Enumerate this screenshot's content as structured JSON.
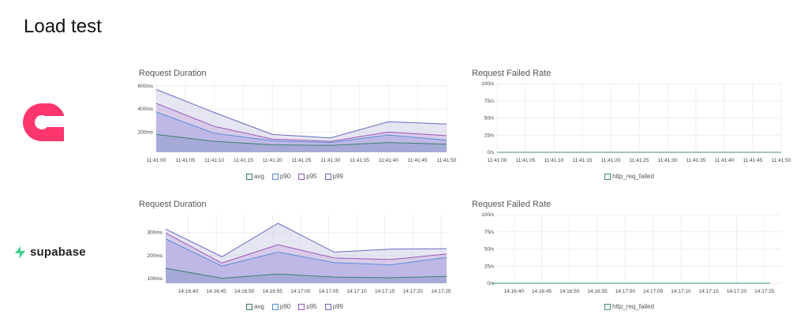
{
  "page": {
    "title": "Load test"
  },
  "logos": [
    {
      "name": "Appwrite"
    },
    {
      "name": "supabase"
    }
  ],
  "colors": {
    "avg": "#3d7f6e",
    "p90": "#5b8ed6",
    "p95": "#9b59b6",
    "p99": "#6a6abf",
    "failed": "#3d8f6e",
    "brand1": "#fd366e",
    "brand2": "#3ecf8e"
  },
  "chart_data": [
    {
      "type": "area",
      "title": "Request Duration",
      "ylim": [
        25,
        600
      ],
      "yticks": [
        200,
        400,
        600
      ],
      "ytick_labels": [
        "200ms",
        "400ms",
        "600ms"
      ],
      "x": [
        "11:41:00",
        "11:41:10",
        "11:41:20",
        "11:41:30",
        "11:41:40",
        "11:41:50"
      ],
      "xtick_labels": [
        "11:41:00",
        "11:41:05",
        "11:41:10",
        "11:41:15",
        "11:41:20",
        "11:41:25",
        "11:41:30",
        "11:41:35",
        "11:41:40",
        "11:41:45",
        "11:41:50"
      ],
      "series": [
        {
          "name": "p99",
          "values": [
            570,
            370,
            180,
            150,
            290,
            270
          ]
        },
        {
          "name": "p95",
          "values": [
            450,
            250,
            140,
            120,
            200,
            170
          ]
        },
        {
          "name": "p90",
          "values": [
            375,
            190,
            125,
            110,
            175,
            130
          ]
        },
        {
          "name": "avg",
          "values": [
            180,
            120,
            90,
            85,
            110,
            95
          ]
        }
      ],
      "legend": [
        "avg",
        "p90",
        "p95",
        "p99"
      ],
      "legend_position": "bottom",
      "grid": true
    },
    {
      "type": "line",
      "title": "Request Failed Rate",
      "ylim": [
        0,
        100
      ],
      "yticks": [
        0,
        25,
        50,
        75,
        100
      ],
      "ytick_labels": [
        "0/s",
        "25/s",
        "50/s",
        "75/s",
        "100/s"
      ],
      "x": [
        "11:41:00",
        "11:41:50"
      ],
      "xtick_labels": [
        "11:41:00",
        "11:41:05",
        "11:41:10",
        "11:41:15",
        "11:41:20",
        "11:41:25",
        "11:41:30",
        "11:41:35",
        "11:41:40",
        "11:41:45",
        "11:41:50"
      ],
      "series": [
        {
          "name": "http_req_failed",
          "values": [
            0,
            0
          ]
        }
      ],
      "legend": [
        "http_req_failed"
      ],
      "legend_position": "bottom",
      "grid": true
    },
    {
      "type": "area",
      "title": "Request Duration",
      "ylim": [
        80,
        340
      ],
      "yticks": [
        100,
        200,
        300
      ],
      "ytick_labels": [
        "100ms",
        "200ms",
        "300ms"
      ],
      "x": [
        "14:16:36",
        "14:16:46",
        "14:16:56",
        "14:17:06",
        "14:17:16",
        "14:17:26"
      ],
      "xtick_labels": [
        "14:16:40",
        "14:16:45",
        "14:16:50",
        "14:16:55",
        "14:17:00",
        "14:17:05",
        "14:17:10",
        "14:17:15",
        "14:17:20",
        "14:17:25"
      ],
      "series": [
        {
          "name": "p99",
          "values": [
            315,
            195,
            340,
            215,
            228,
            230
          ]
        },
        {
          "name": "p95",
          "values": [
            298,
            168,
            247,
            190,
            183,
            207
          ]
        },
        {
          "name": "p90",
          "values": [
            272,
            155,
            215,
            170,
            160,
            192
          ]
        },
        {
          "name": "avg",
          "values": [
            145,
            102,
            120,
            107,
            104,
            110
          ]
        }
      ],
      "legend": [
        "avg",
        "p90",
        "p95",
        "p99"
      ],
      "legend_position": "bottom",
      "grid": true
    },
    {
      "type": "line",
      "title": "Request Failed Rate",
      "ylim": [
        0,
        100
      ],
      "yticks": [
        0,
        25,
        50,
        75,
        100
      ],
      "ytick_labels": [
        "0/s",
        "25/s",
        "50/s",
        "75/s",
        "100/s"
      ],
      "x": [
        "14:16:36",
        "14:17:26"
      ],
      "xtick_labels": [
        "14:16:40",
        "14:16:45",
        "14:16:50",
        "14:16:55",
        "14:17:00",
        "14:17:05",
        "14:17:10",
        "14:17:15",
        "14:17:20",
        "14:17:25"
      ],
      "series": [
        {
          "name": "http_req_failed",
          "values": [
            0,
            0
          ]
        }
      ],
      "legend": [
        "http_req_failed"
      ],
      "legend_position": "bottom",
      "grid": true
    }
  ]
}
